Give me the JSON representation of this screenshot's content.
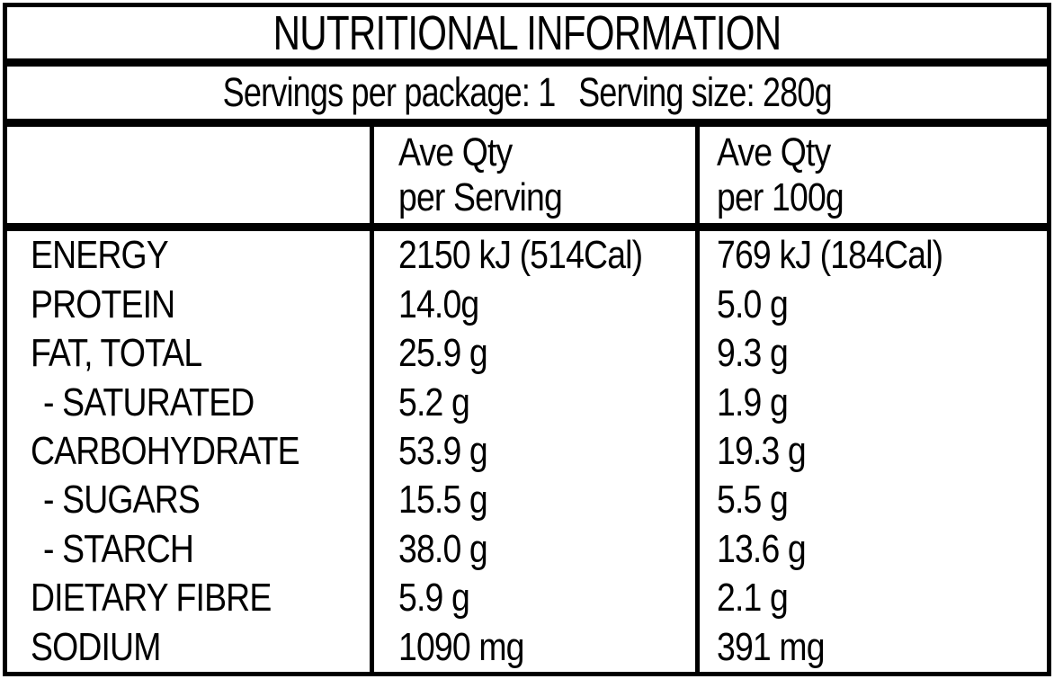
{
  "label": {
    "title": "NUTRITIONAL INFORMATION",
    "servings_per_package": "Servings per package: 1",
    "serving_size": "Serving size: 280g",
    "columns": {
      "per_serving": {
        "line1": "Ave Qty",
        "line2": "per Serving"
      },
      "per_100g": {
        "line1": "Ave Qty",
        "line2": "per 100g"
      }
    },
    "rows": [
      {
        "nutrient": "ENERGY",
        "per_serving": "2150 kJ (514Cal)",
        "per_100g": "769 kJ (184Cal)",
        "indent": false
      },
      {
        "nutrient": "PROTEIN",
        "per_serving": "14.0g",
        "per_100g": "5.0 g",
        "indent": false
      },
      {
        "nutrient": "FAT, TOTAL",
        "per_serving": "25.9 g",
        "per_100g": "9.3 g",
        "indent": false
      },
      {
        "nutrient": "- SATURATED",
        "per_serving": "5.2 g",
        "per_100g": "1.9 g",
        "indent": true
      },
      {
        "nutrient": "CARBOHYDRATE",
        "per_serving": "53.9 g",
        "per_100g": "19.3 g",
        "indent": false
      },
      {
        "nutrient": "- SUGARS",
        "per_serving": "15.5 g",
        "per_100g": "5.5 g",
        "indent": true
      },
      {
        "nutrient": "- STARCH",
        "per_serving": "38.0 g",
        "per_100g": "13.6 g",
        "indent": true
      },
      {
        "nutrient": "DIETARY FIBRE",
        "per_serving": "5.9 g",
        "per_100g": "2.1 g",
        "indent": false
      },
      {
        "nutrient": "SODIUM",
        "per_serving": "1090 mg",
        "per_100g": "391 mg",
        "indent": false
      }
    ],
    "colors": {
      "border": "#000000",
      "text": "#000000",
      "background": "#ffffff"
    }
  }
}
